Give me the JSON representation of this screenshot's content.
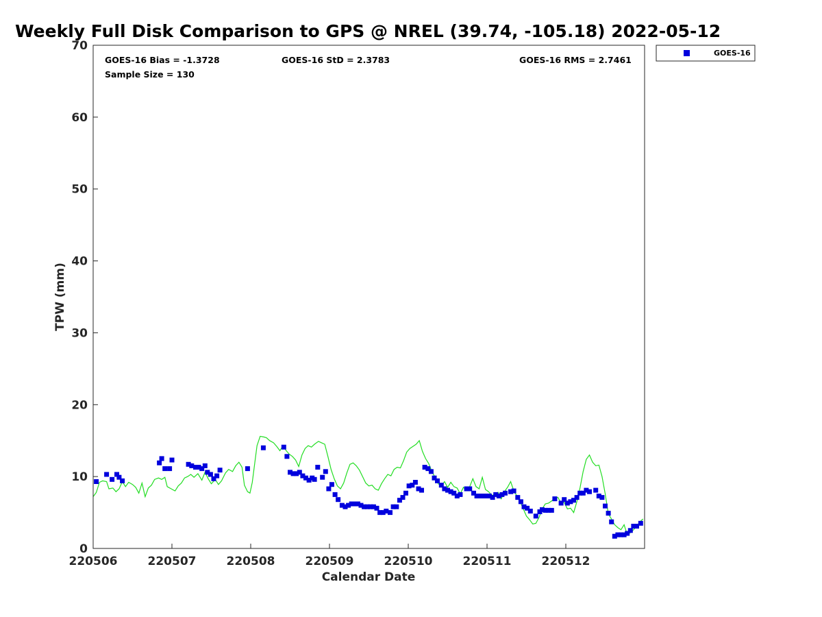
{
  "chart_data": {
    "type": "scatter+line",
    "title": "Weekly Full Disk Comparison to GPS @ NREL (39.74, -105.18) 2022-05-12",
    "xlabel": "Calendar Date",
    "ylabel": "TPW (mm)",
    "xlim": [
      0,
      7
    ],
    "ylim": [
      0,
      70
    ],
    "x_ticks": [
      0,
      1,
      2,
      3,
      4,
      5,
      6
    ],
    "x_tick_labels": [
      "220506",
      "220507",
      "220508",
      "220509",
      "220510",
      "220511",
      "220512"
    ],
    "y_ticks": [
      0,
      10,
      20,
      30,
      40,
      50,
      60,
      70
    ],
    "y_tick_labels": [
      "0",
      "10",
      "20",
      "30",
      "40",
      "50",
      "60",
      "70"
    ],
    "grid": false,
    "legend": {
      "placement": "top-right (outside)",
      "entries": [
        "GOES-16"
      ]
    },
    "stats": {
      "bias": "GOES-16 Bias = -1.3728",
      "std": "GOES-16 StD = 2.3783",
      "rms": "GOES-16 RMS = 2.7461",
      "sample": "Sample Size = 130"
    },
    "series": [
      {
        "name": "GOES-16",
        "kind": "scatter",
        "marker": "square",
        "color": "#0000dd",
        "points": [
          [
            0.04,
            9.3
          ],
          [
            0.17,
            10.3
          ],
          [
            0.24,
            9.6
          ],
          [
            0.3,
            10.3
          ],
          [
            0.33,
            9.9
          ],
          [
            0.37,
            9.4
          ],
          [
            0.84,
            11.9
          ],
          [
            0.87,
            12.5
          ],
          [
            0.91,
            11.1
          ],
          [
            0.97,
            11.1
          ],
          [
            1.0,
            12.3
          ],
          [
            1.21,
            11.7
          ],
          [
            1.25,
            11.5
          ],
          [
            1.3,
            11.3
          ],
          [
            1.34,
            11.3
          ],
          [
            1.38,
            11.1
          ],
          [
            1.42,
            11.5
          ],
          [
            1.45,
            10.6
          ],
          [
            1.49,
            10.3
          ],
          [
            1.53,
            9.7
          ],
          [
            1.57,
            10.1
          ],
          [
            1.61,
            10.9
          ],
          [
            1.96,
            11.1
          ],
          [
            2.16,
            14.0
          ],
          [
            2.42,
            14.1
          ],
          [
            2.46,
            12.8
          ],
          [
            2.5,
            10.6
          ],
          [
            2.54,
            10.4
          ],
          [
            2.58,
            10.4
          ],
          [
            2.62,
            10.6
          ],
          [
            2.66,
            10.1
          ],
          [
            2.7,
            9.8
          ],
          [
            2.74,
            9.5
          ],
          [
            2.78,
            9.8
          ],
          [
            2.81,
            9.6
          ],
          [
            2.85,
            11.3
          ],
          [
            2.91,
            9.9
          ],
          [
            2.95,
            10.7
          ],
          [
            2.99,
            8.3
          ],
          [
            3.03,
            8.9
          ],
          [
            3.07,
            7.5
          ],
          [
            3.11,
            6.8
          ],
          [
            3.16,
            6.0
          ],
          [
            3.2,
            5.8
          ],
          [
            3.24,
            6.0
          ],
          [
            3.28,
            6.2
          ],
          [
            3.32,
            6.2
          ],
          [
            3.36,
            6.2
          ],
          [
            3.4,
            6.0
          ],
          [
            3.44,
            5.8
          ],
          [
            3.48,
            5.8
          ],
          [
            3.52,
            5.8
          ],
          [
            3.56,
            5.8
          ],
          [
            3.6,
            5.6
          ],
          [
            3.64,
            5.0
          ],
          [
            3.68,
            5.0
          ],
          [
            3.72,
            5.2
          ],
          [
            3.77,
            5.0
          ],
          [
            3.81,
            5.8
          ],
          [
            3.85,
            5.8
          ],
          [
            3.89,
            6.7
          ],
          [
            3.93,
            7.1
          ],
          [
            3.97,
            7.7
          ],
          [
            4.01,
            8.7
          ],
          [
            4.05,
            8.8
          ],
          [
            4.09,
            9.2
          ],
          [
            4.13,
            8.3
          ],
          [
            4.17,
            8.1
          ],
          [
            4.21,
            11.3
          ],
          [
            4.25,
            11.1
          ],
          [
            4.29,
            10.7
          ],
          [
            4.33,
            9.8
          ],
          [
            4.37,
            9.4
          ],
          [
            4.42,
            8.8
          ],
          [
            4.46,
            8.3
          ],
          [
            4.5,
            8.1
          ],
          [
            4.54,
            7.9
          ],
          [
            4.58,
            7.7
          ],
          [
            4.62,
            7.3
          ],
          [
            4.66,
            7.5
          ],
          [
            4.74,
            8.3
          ],
          [
            4.78,
            8.3
          ],
          [
            4.83,
            7.7
          ],
          [
            4.87,
            7.3
          ],
          [
            4.91,
            7.3
          ],
          [
            4.95,
            7.3
          ],
          [
            4.99,
            7.3
          ],
          [
            5.03,
            7.3
          ],
          [
            5.07,
            7.1
          ],
          [
            5.11,
            7.5
          ],
          [
            5.15,
            7.3
          ],
          [
            5.19,
            7.5
          ],
          [
            5.23,
            7.7
          ],
          [
            5.3,
            7.9
          ],
          [
            5.34,
            8.0
          ],
          [
            5.39,
            7.1
          ],
          [
            5.43,
            6.5
          ],
          [
            5.47,
            5.8
          ],
          [
            5.51,
            5.6
          ],
          [
            5.55,
            5.2
          ],
          [
            5.62,
            4.5
          ],
          [
            5.67,
            5.1
          ],
          [
            5.7,
            5.4
          ],
          [
            5.74,
            5.3
          ],
          [
            5.78,
            5.3
          ],
          [
            5.82,
            5.3
          ],
          [
            5.86,
            6.9
          ],
          [
            5.94,
            6.3
          ],
          [
            5.98,
            6.8
          ],
          [
            6.02,
            6.3
          ],
          [
            6.06,
            6.5
          ],
          [
            6.1,
            6.7
          ],
          [
            6.14,
            7.1
          ],
          [
            6.18,
            7.7
          ],
          [
            6.22,
            7.7
          ],
          [
            6.26,
            8.1
          ],
          [
            6.3,
            7.9
          ],
          [
            6.38,
            8.1
          ],
          [
            6.42,
            7.3
          ],
          [
            6.46,
            7.1
          ],
          [
            6.5,
            5.9
          ],
          [
            6.54,
            4.9
          ],
          [
            6.58,
            3.7
          ],
          [
            6.62,
            1.7
          ],
          [
            6.66,
            1.9
          ],
          [
            6.7,
            1.9
          ],
          [
            6.74,
            1.9
          ],
          [
            6.78,
            2.1
          ],
          [
            6.82,
            2.5
          ],
          [
            6.86,
            3.1
          ],
          [
            6.9,
            3.1
          ],
          [
            6.95,
            3.5
          ]
        ]
      },
      {
        "name": "GPS",
        "kind": "line",
        "color": "#22dd22",
        "points": [
          [
            0.0,
            7.2
          ],
          [
            0.04,
            7.8
          ],
          [
            0.08,
            9.2
          ],
          [
            0.12,
            9.4
          ],
          [
            0.17,
            9.3
          ],
          [
            0.2,
            8.3
          ],
          [
            0.25,
            8.4
          ],
          [
            0.29,
            7.9
          ],
          [
            0.33,
            8.3
          ],
          [
            0.37,
            9.3
          ],
          [
            0.41,
            8.6
          ],
          [
            0.45,
            9.2
          ],
          [
            0.5,
            8.9
          ],
          [
            0.54,
            8.5
          ],
          [
            0.58,
            7.7
          ],
          [
            0.62,
            9.1
          ],
          [
            0.66,
            7.2
          ],
          [
            0.7,
            8.4
          ],
          [
            0.74,
            8.8
          ],
          [
            0.78,
            9.6
          ],
          [
            0.83,
            9.8
          ],
          [
            0.87,
            9.6
          ],
          [
            0.91,
            9.9
          ],
          [
            0.94,
            8.6
          ],
          [
            0.99,
            8.3
          ],
          [
            1.04,
            8.0
          ],
          [
            1.08,
            8.7
          ],
          [
            1.12,
            9.1
          ],
          [
            1.16,
            9.8
          ],
          [
            1.2,
            10.0
          ],
          [
            1.24,
            10.3
          ],
          [
            1.28,
            9.9
          ],
          [
            1.33,
            10.4
          ],
          [
            1.38,
            9.5
          ],
          [
            1.42,
            10.6
          ],
          [
            1.46,
            9.7
          ],
          [
            1.5,
            9.0
          ],
          [
            1.55,
            9.6
          ],
          [
            1.59,
            8.9
          ],
          [
            1.63,
            9.4
          ],
          [
            1.68,
            10.5
          ],
          [
            1.72,
            11.0
          ],
          [
            1.77,
            10.7
          ],
          [
            1.81,
            11.5
          ],
          [
            1.85,
            12.0
          ],
          [
            1.89,
            11.3
          ],
          [
            1.92,
            8.8
          ],
          [
            1.96,
            7.9
          ],
          [
            1.99,
            7.7
          ],
          [
            2.02,
            9.2
          ],
          [
            2.05,
            11.8
          ],
          [
            2.08,
            14.3
          ],
          [
            2.12,
            15.6
          ],
          [
            2.17,
            15.5
          ],
          [
            2.2,
            15.4
          ],
          [
            2.24,
            15.0
          ],
          [
            2.29,
            14.7
          ],
          [
            2.33,
            14.2
          ],
          [
            2.37,
            13.6
          ],
          [
            2.41,
            14.3
          ],
          [
            2.45,
            13.6
          ],
          [
            2.49,
            13.1
          ],
          [
            2.53,
            12.8
          ],
          [
            2.57,
            12.3
          ],
          [
            2.61,
            11.4
          ],
          [
            2.65,
            13.0
          ],
          [
            2.69,
            13.9
          ],
          [
            2.73,
            14.3
          ],
          [
            2.77,
            14.1
          ],
          [
            2.81,
            14.5
          ],
          [
            2.86,
            14.9
          ],
          [
            2.9,
            14.7
          ],
          [
            2.94,
            14.5
          ],
          [
            2.98,
            12.8
          ],
          [
            3.02,
            11.0
          ],
          [
            3.06,
            9.7
          ],
          [
            3.1,
            8.7
          ],
          [
            3.14,
            8.3
          ],
          [
            3.18,
            9.1
          ],
          [
            3.22,
            10.5
          ],
          [
            3.26,
            11.7
          ],
          [
            3.3,
            11.9
          ],
          [
            3.34,
            11.5
          ],
          [
            3.38,
            10.9
          ],
          [
            3.42,
            10.0
          ],
          [
            3.46,
            9.1
          ],
          [
            3.5,
            8.7
          ],
          [
            3.54,
            8.8
          ],
          [
            3.58,
            8.3
          ],
          [
            3.62,
            8.1
          ],
          [
            3.66,
            9.0
          ],
          [
            3.7,
            9.7
          ],
          [
            3.74,
            10.3
          ],
          [
            3.78,
            10.1
          ],
          [
            3.82,
            11.0
          ],
          [
            3.86,
            11.3
          ],
          [
            3.9,
            11.2
          ],
          [
            3.94,
            12.2
          ],
          [
            3.98,
            13.4
          ],
          [
            4.02,
            13.9
          ],
          [
            4.06,
            14.2
          ],
          [
            4.1,
            14.5
          ],
          [
            4.14,
            15.0
          ],
          [
            4.18,
            13.5
          ],
          [
            4.22,
            12.5
          ],
          [
            4.26,
            11.8
          ],
          [
            4.3,
            10.7
          ],
          [
            4.34,
            9.9
          ],
          [
            4.38,
            9.0
          ],
          [
            4.42,
            8.7
          ],
          [
            4.46,
            9.3
          ],
          [
            4.5,
            8.5
          ],
          [
            4.54,
            9.2
          ],
          [
            4.58,
            8.6
          ],
          [
            4.62,
            8.4
          ],
          [
            4.66,
            7.6
          ],
          [
            4.7,
            8.5
          ],
          [
            4.74,
            8.1
          ],
          [
            4.78,
            8.6
          ],
          [
            4.82,
            9.7
          ],
          [
            4.86,
            8.6
          ],
          [
            4.9,
            8.3
          ],
          [
            4.94,
            9.9
          ],
          [
            4.98,
            8.2
          ],
          [
            5.02,
            7.9
          ],
          [
            5.06,
            7.4
          ],
          [
            5.1,
            7.5
          ],
          [
            5.14,
            7.8
          ],
          [
            5.18,
            6.9
          ],
          [
            5.22,
            7.9
          ],
          [
            5.26,
            8.5
          ],
          [
            5.3,
            9.3
          ],
          [
            5.34,
            8.0
          ],
          [
            5.38,
            7.3
          ],
          [
            5.42,
            6.5
          ],
          [
            5.46,
            5.5
          ],
          [
            5.5,
            4.5
          ],
          [
            5.54,
            4.0
          ],
          [
            5.58,
            3.4
          ],
          [
            5.62,
            3.5
          ],
          [
            5.66,
            4.3
          ],
          [
            5.7,
            5.5
          ],
          [
            5.74,
            6.2
          ],
          [
            5.78,
            6.3
          ],
          [
            5.82,
            6.6
          ],
          [
            5.86,
            7.0
          ],
          [
            5.9,
            7.1
          ],
          [
            5.94,
            6.3
          ],
          [
            5.98,
            6.4
          ],
          [
            6.02,
            5.5
          ],
          [
            6.06,
            5.6
          ],
          [
            6.1,
            5.0
          ],
          [
            6.14,
            6.5
          ],
          [
            6.18,
            8.4
          ],
          [
            6.22,
            10.7
          ],
          [
            6.26,
            12.4
          ],
          [
            6.3,
            13.0
          ],
          [
            6.34,
            12.0
          ],
          [
            6.38,
            11.5
          ],
          [
            6.42,
            11.6
          ],
          [
            6.46,
            10.0
          ],
          [
            6.5,
            7.6
          ],
          [
            6.54,
            4.8
          ],
          [
            6.58,
            4.1
          ],
          [
            6.62,
            3.3
          ],
          [
            6.66,
            2.9
          ],
          [
            6.7,
            2.6
          ],
          [
            6.74,
            3.3
          ],
          [
            6.78,
            1.9
          ],
          [
            6.82,
            2.2
          ],
          [
            6.86,
            2.6
          ],
          [
            6.9,
            3.1
          ],
          [
            6.94,
            3.7
          ],
          [
            6.98,
            4.1
          ]
        ]
      }
    ]
  }
}
